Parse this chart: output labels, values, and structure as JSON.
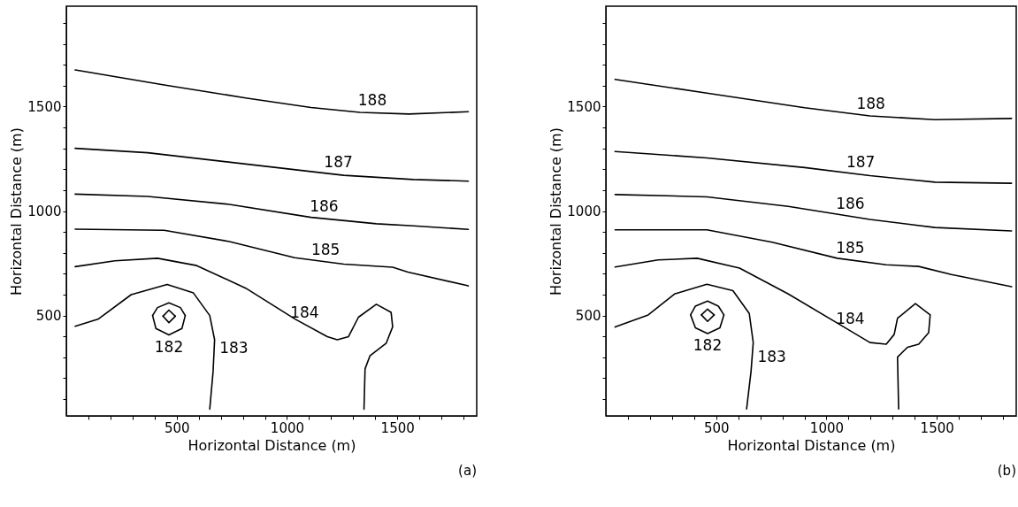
{
  "chart_data": [
    {
      "type": "line",
      "xlabel": "Horizontal Distance (m)",
      "ylabel": "Horizontal Distance (m)",
      "xlim": [
        0,
        1860
      ],
      "ylim": [
        20,
        1980
      ],
      "xticks": [
        500,
        1000,
        1500,
        {
          "value": 100,
          "label": null
        },
        {
          "value": 200,
          "label": null
        },
        {
          "value": 300,
          "label": null
        },
        {
          "value": 400,
          "label": null
        },
        {
          "value": 600,
          "label": null
        },
        {
          "value": 700,
          "label": null
        },
        {
          "value": 800,
          "label": null
        },
        {
          "value": 900,
          "label": null
        },
        {
          "value": 1100,
          "label": null
        },
        {
          "value": 1200,
          "label": null
        },
        {
          "value": 1300,
          "label": null
        },
        {
          "value": 1400,
          "label": null
        },
        {
          "value": 1600,
          "label": null
        },
        {
          "value": 1700,
          "label": null
        },
        {
          "value": 1800,
          "label": null
        }
      ],
      "yticks": [
        500,
        1000,
        1500,
        {
          "value": 100,
          "label": null
        },
        {
          "value": 200,
          "label": null
        },
        {
          "value": 300,
          "label": null
        },
        {
          "value": 400,
          "label": null
        },
        {
          "value": 600,
          "label": null
        },
        {
          "value": 700,
          "label": null
        },
        {
          "value": 800,
          "label": null
        },
        {
          "value": 900,
          "label": null
        },
        {
          "value": 1100,
          "label": null
        },
        {
          "value": 1200,
          "label": null
        },
        {
          "value": 1300,
          "label": null
        },
        {
          "value": 1400,
          "label": null
        },
        {
          "value": 1600,
          "label": null
        },
        {
          "value": 1700,
          "label": null
        },
        {
          "value": 1800,
          "label": null
        },
        {
          "value": 1900,
          "label": null
        }
      ],
      "series": [
        {
          "color": "#000000",
          "x": [
            40,
            443,
            813,
            1109,
            1331,
            1553,
            1822
          ],
          "values": [
            1675,
            1603,
            1541,
            1495,
            1472,
            1464,
            1475
          ]
        },
        {
          "color": "#000000",
          "x": [
            40,
            369,
            813,
            1257,
            1573,
            1822
          ],
          "values": [
            1300,
            1279,
            1225,
            1171,
            1151,
            1143
          ]
        },
        {
          "color": "#000000",
          "x": [
            40,
            369,
            739,
            1109,
            1405,
            1573,
            1822
          ],
          "values": [
            1081,
            1070,
            1032,
            970,
            939,
            929,
            912
          ]
        },
        {
          "color": "#000000",
          "x": [
            40,
            443,
            739,
            1035,
            1257,
            1479,
            1548,
            1822
          ],
          "values": [
            913,
            908,
            854,
            777,
            746,
            731,
            708,
            642
          ]
        },
        {
          "color": "#000000",
          "x": [
            40,
            220,
            413,
            591,
            813,
            1035,
            1183,
            1228,
            1279,
            1324,
            1405,
            1472,
            1479,
            1450,
            1376,
            1354,
            1349
          ],
          "values": [
            734,
            762,
            774,
            739,
            631,
            484,
            399,
            384,
            399,
            492,
            554,
            515,
            446,
            368,
            307,
            245,
            52
          ]
        },
        {
          "color": "#000000",
          "x": [
            40,
            146,
            294,
            457,
            576,
            650,
            672,
            665,
            650
          ],
          "values": [
            449,
            484,
            600,
            649,
            608,
            500,
            384,
            230,
            52
          ]
        },
        {
          "color": "#000000",
          "x": [
            391,
            413,
            465,
            517,
            539
          ],
          "values": [
            500,
            538,
            561,
            538,
            500
          ]
        },
        {
          "color": "#000000",
          "x": [
            391,
            406,
            465,
            524,
            539
          ],
          "values": [
            500,
            438,
            407,
            438,
            500
          ]
        },
        {
          "color": "#000000",
          "x": [
            438,
            465,
            494
          ],
          "values": [
            497,
            526,
            497
          ]
        },
        {
          "color": "#000000",
          "x": [
            438,
            465,
            494
          ],
          "values": [
            497,
            466,
            497
          ]
        }
      ],
      "annotations": [
        {
          "text": "188",
          "x": 1387,
          "y": 1470
        },
        {
          "text": "187",
          "x": 1233,
          "y": 1174
        },
        {
          "text": "186",
          "x": 1168,
          "y": 964
        },
        {
          "text": "185",
          "x": 1175,
          "y": 757
        },
        {
          "text": "184",
          "x": 1080,
          "y": 458
        },
        {
          "text": "182",
          "x": 465,
          "y": 407
        },
        {
          "text": "183",
          "x": 670,
          "y": 340
        },
        "(a)"
      ]
    },
    {
      "type": "line",
      "xlabel": "Horizontal Distance (m)",
      "ylabel": "Horizontal Distance (m)",
      "xlim": [
        0,
        1860
      ],
      "ylim": [
        20,
        1980
      ],
      "xticks": [
        500,
        1000,
        1500,
        {
          "value": 100,
          "label": null
        },
        {
          "value": 200,
          "label": null
        },
        {
          "value": 300,
          "label": null
        },
        {
          "value": 400,
          "label": null
        },
        {
          "value": 600,
          "label": null
        },
        {
          "value": 700,
          "label": null
        },
        {
          "value": 800,
          "label": null
        },
        {
          "value": 900,
          "label": null
        },
        {
          "value": 1100,
          "label": null
        },
        {
          "value": 1200,
          "label": null
        },
        {
          "value": 1300,
          "label": null
        },
        {
          "value": 1400,
          "label": null
        },
        {
          "value": 1600,
          "label": null
        },
        {
          "value": 1700,
          "label": null
        },
        {
          "value": 1800,
          "label": null
        }
      ],
      "yticks": [
        500,
        1000,
        1500,
        {
          "value": 100,
          "label": null
        },
        {
          "value": 200,
          "label": null
        },
        {
          "value": 300,
          "label": null
        },
        {
          "value": 400,
          "label": null
        },
        {
          "value": 600,
          "label": null
        },
        {
          "value": 700,
          "label": null
        },
        {
          "value": 800,
          "label": null
        },
        {
          "value": 900,
          "label": null
        },
        {
          "value": 1100,
          "label": null
        },
        {
          "value": 1200,
          "label": null
        },
        {
          "value": 1300,
          "label": null
        },
        {
          "value": 1400,
          "label": null
        },
        {
          "value": 1600,
          "label": null
        },
        {
          "value": 1700,
          "label": null
        },
        {
          "value": 1800,
          "label": null
        },
        {
          "value": 1900,
          "label": null
        }
      ],
      "series": [
        {
          "color": "#000000",
          "x": [
            42,
            458,
            901,
            1197,
            1492,
            1839
          ],
          "values": [
            1630,
            1564,
            1494,
            1455,
            1437,
            1443
          ]
        },
        {
          "color": "#000000",
          "x": [
            42,
            458,
            901,
            1197,
            1492,
            1839
          ],
          "values": [
            1285,
            1254,
            1208,
            1169,
            1138,
            1133
          ]
        },
        {
          "color": "#000000",
          "x": [
            42,
            458,
            827,
            1197,
            1492,
            1839
          ],
          "values": [
            1079,
            1068,
            1022,
            960,
            921,
            905
          ]
        },
        {
          "color": "#000000",
          "x": [
            42,
            458,
            754,
            1049,
            1271,
            1418,
            1566,
            1839
          ],
          "values": [
            910,
            910,
            851,
            774,
            743,
            735,
            696,
            638
          ]
        },
        {
          "color": "#000000",
          "x": [
            42,
            237,
            414,
            606,
            827,
            1049,
            1197,
            1271,
            1307,
            1322,
            1403,
            1470,
            1463,
            1418,
            1367,
            1322,
            1327
          ],
          "values": [
            732,
            766,
            774,
            727,
            603,
            464,
            371,
            363,
            410,
            487,
            557,
            503,
            418,
            363,
            348,
            301,
            53
          ]
        },
        {
          "color": "#000000",
          "x": [
            42,
            192,
            311,
            458,
            576,
            650,
            668,
            658,
            638
          ],
          "values": [
            445,
            503,
            603,
            650,
            619,
            510,
            371,
            232,
            53
          ]
        },
        {
          "color": "#000000",
          "x": [
            384,
            406,
            461,
            510,
            535
          ],
          "values": [
            503,
            545,
            569,
            545,
            503
          ]
        },
        {
          "color": "#000000",
          "x": [
            384,
            406,
            461,
            517,
            535
          ],
          "values": [
            503,
            441,
            414,
            441,
            503
          ]
        },
        {
          "color": "#000000",
          "x": [
            433,
            461,
            491
          ],
          "values": [
            503,
            531,
            503
          ]
        },
        {
          "color": "#000000",
          "x": [
            433,
            461,
            491
          ],
          "values": [
            503,
            472,
            503
          ]
        }
      ],
      "annotations": [
        {
          "text": "188",
          "x": 1201,
          "y": 1455
        },
        {
          "text": "187",
          "x": 1155,
          "y": 1175
        },
        {
          "text": "186",
          "x": 1108,
          "y": 975
        },
        {
          "text": "185",
          "x": 1108,
          "y": 766
        },
        {
          "text": "184",
          "x": 1108,
          "y": 427
        },
        {
          "text": "182",
          "x": 461,
          "y": 414
        },
        {
          "text": "183",
          "x": 663,
          "y": 300
        },
        "(b)"
      ]
    }
  ]
}
